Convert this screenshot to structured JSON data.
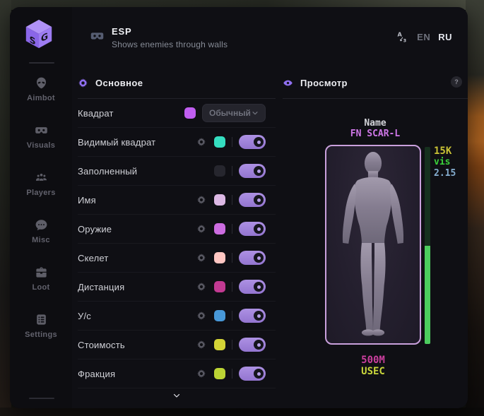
{
  "header": {
    "title": "ESP",
    "subtitle": "Shows enemies through walls",
    "lang": {
      "en": "EN",
      "ru": "RU"
    }
  },
  "sidebar": {
    "items": [
      {
        "label": "Aimbot",
        "icon": "alien-icon",
        "active": false
      },
      {
        "label": "Visuals",
        "icon": "vr-goggles-icon",
        "active": true
      },
      {
        "label": "Players",
        "icon": "players-icon",
        "active": false
      },
      {
        "label": "Misc",
        "icon": "chat-dots-icon",
        "active": false
      },
      {
        "label": "Loot",
        "icon": "toolbox-icon",
        "active": false
      },
      {
        "label": "Settings",
        "icon": "list-icon",
        "active": false
      }
    ]
  },
  "main": {
    "section_title": "Основное",
    "rows": [
      {
        "label": "Квадрат",
        "swatch": "#c05ef0",
        "dropdown": "Обычный"
      },
      {
        "label": "Видимый квадрат",
        "gear": true,
        "swatch": "#35dec0",
        "toggle": true
      },
      {
        "label": "Заполненный",
        "swatch": "#26262e",
        "toggle": true
      },
      {
        "label": "Имя",
        "gear": true,
        "swatch": "#dcb8e4",
        "toggle": true
      },
      {
        "label": "Оружие",
        "gear": true,
        "swatch": "#cc6ce0",
        "toggle": true
      },
      {
        "label": "Скелет",
        "gear": true,
        "swatch": "#ffc6c2",
        "toggle": true
      },
      {
        "label": "Дистанция",
        "gear": true,
        "swatch": "#c23a92",
        "toggle": true
      },
      {
        "label": "У/с",
        "gear": true,
        "swatch": "#4898d8",
        "toggle": true
      },
      {
        "label": "Стоимость",
        "gear": true,
        "swatch": "#d4d436",
        "toggle": true
      },
      {
        "label": "Фракция",
        "gear": true,
        "swatch": "#bcd434",
        "toggle": true
      }
    ]
  },
  "preview": {
    "section_title": "Просмотр",
    "help_label": "?",
    "target_name_label": "Name",
    "target_weapon": "FN SCAR-L",
    "stats": {
      "value": "15K",
      "visibility": "vis",
      "distance": "2.15"
    },
    "money": "500M",
    "faction": "USEC",
    "health_fill_pct": 50,
    "colors": {
      "weapon": "#cf77e8",
      "value": "#c9c235",
      "visibility": "#3bd13b",
      "distance": "#85aed0",
      "money": "#cb3f9e",
      "faction": "#c9d63b",
      "health": "#4ccc5e"
    }
  },
  "theme": {
    "accent": "#8f6ff0",
    "toggle_on": "#a184dd",
    "window_bg": "#0f0f14"
  },
  "icons": {
    "logo": "sg-cube-logo",
    "header_feature": "vr-goggles-icon",
    "language_switch": "translate-icon",
    "section_main": "gear-icon",
    "section_preview": "eye-icon",
    "row_config": "gear-icon",
    "help": "question-icon",
    "scroll_more": "chevron-down-icon",
    "dropdown_caret": "chevron-down-icon"
  }
}
